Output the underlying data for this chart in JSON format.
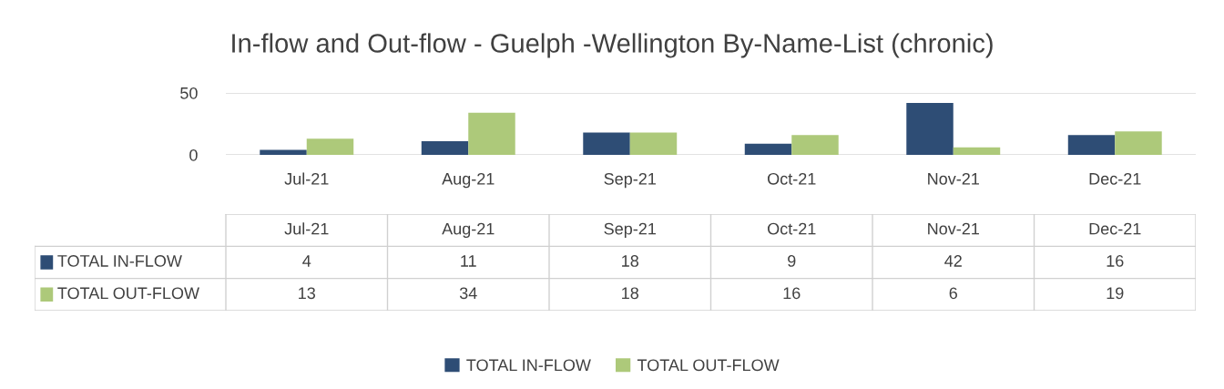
{
  "chart_data": {
    "type": "bar",
    "title": "In-flow and Out-flow - Guelph -Wellington By-Name-List (chronic)",
    "categories": [
      "Jul-21",
      "Aug-21",
      "Sep-21",
      "Oct-21",
      "Nov-21",
      "Dec-21"
    ],
    "series": [
      {
        "name": "TOTAL IN-FLOW",
        "color": "#2e4d75",
        "values": [
          4,
          11,
          18,
          9,
          42,
          16
        ]
      },
      {
        "name": "TOTAL OUT-FLOW",
        "color": "#adc97a",
        "values": [
          13,
          34,
          18,
          16,
          6,
          19
        ]
      }
    ],
    "ylim": [
      0,
      50
    ],
    "yticks": [
      0,
      50
    ],
    "grid": "y",
    "legend": "bottom",
    "data_labels": true
  }
}
